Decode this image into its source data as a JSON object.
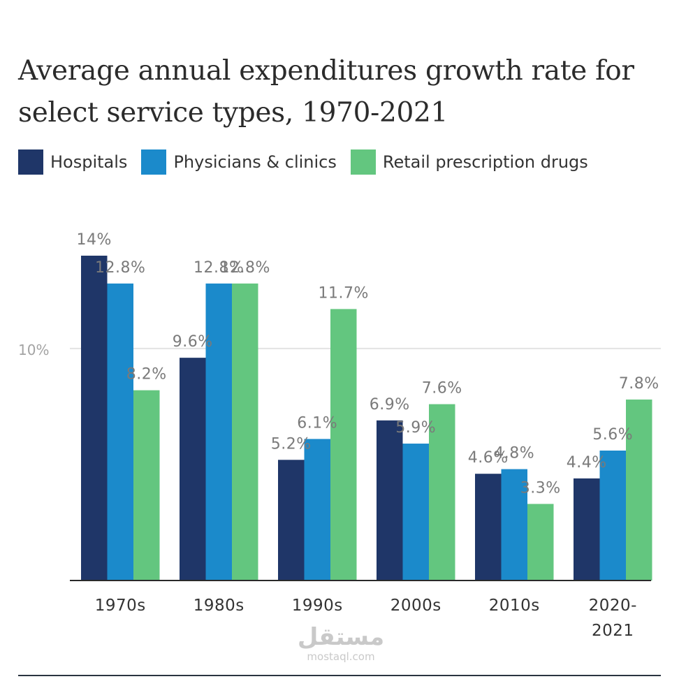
{
  "chart_data": {
    "type": "bar",
    "title": "Average annual expenditures growth rate for select service types, 1970-2021",
    "categories": [
      [
        "1970s"
      ],
      [
        "1980s"
      ],
      [
        "1990s"
      ],
      [
        "2000s"
      ],
      [
        "2010s"
      ],
      [
        "2020-",
        "2021"
      ]
    ],
    "series": [
      {
        "name": "Hospitals",
        "color": "#1f3668",
        "values": [
          14,
          9.6,
          5.2,
          6.9,
          4.6,
          4.4
        ],
        "labels": [
          "14%",
          "9.6%",
          "5.2%",
          "6.9%",
          "4.6%",
          "4.4%"
        ]
      },
      {
        "name": "Physicians & clinics",
        "color": "#1b8acb",
        "values": [
          12.8,
          12.8,
          6.1,
          5.9,
          4.8,
          5.6
        ],
        "labels": [
          "12.8%",
          "12.8%",
          "6.1%",
          "5.9%",
          "4.8%",
          "5.6%"
        ]
      },
      {
        "name": "Retail prescription drugs",
        "color": "#63c67f",
        "values": [
          8.2,
          12.8,
          11.7,
          7.6,
          3.3,
          7.8
        ],
        "labels": [
          "8.2%",
          "12.8%",
          "11.7%",
          "7.6%",
          "3.3%",
          "7.8%"
        ]
      }
    ],
    "yticks": [
      {
        "value": 10,
        "label": "10%"
      }
    ],
    "ylim": [
      0,
      14
    ],
    "xlabel": "",
    "ylabel": "",
    "legend": "top-left",
    "grid": true
  },
  "watermark": {
    "arabic": "مستقل",
    "latin": "mostaql.com"
  }
}
